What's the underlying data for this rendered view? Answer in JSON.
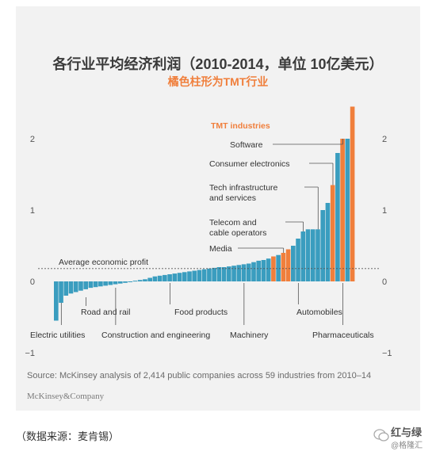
{
  "header": {
    "title": "各行业平均经济利润（2010-2014，单位 10亿美元）",
    "subtitle": "橘色柱形为TMT行业"
  },
  "source": "Source: McKinsey analysis of 2,414 public companies across 59 industries from 2010–14",
  "brand": "McKinsey&Company",
  "footer_note": "（数据来源：麦肯锡）",
  "watermark": {
    "name": "红与绿",
    "handle": "@格隆汇"
  },
  "colors": {
    "teal": "#3a9dbf",
    "orange": "#f07f3c",
    "panel": "#f2f2f2"
  },
  "chart_data": {
    "type": "bar",
    "title": "各行业平均经济利润（2010-2014，单位 10亿美元）",
    "subtitle": "橘色柱形为TMT行业",
    "ylim": [
      -1,
      2.5
    ],
    "y_ticks": [
      "2",
      "1",
      "0",
      "−1"
    ],
    "y_tick_values": [
      2,
      1,
      0,
      -1
    ],
    "grid": false,
    "reference_line": {
      "label": "Average economic profit",
      "value": 0.18
    },
    "values": [
      -0.55,
      -0.3,
      -0.2,
      -0.17,
      -0.15,
      -0.13,
      -0.11,
      -0.09,
      -0.08,
      -0.07,
      -0.06,
      -0.05,
      -0.04,
      -0.03,
      -0.02,
      0.0,
      0.01,
      0.02,
      0.03,
      0.05,
      0.07,
      0.08,
      0.09,
      0.1,
      0.11,
      0.12,
      0.13,
      0.14,
      0.15,
      0.16,
      0.17,
      0.18,
      0.19,
      0.2,
      0.2,
      0.21,
      0.22,
      0.23,
      0.24,
      0.25,
      0.27,
      0.29,
      0.3,
      0.32,
      0.35,
      0.37,
      0.4,
      0.45,
      0.5,
      0.6,
      0.7,
      0.73,
      0.73,
      0.73,
      1.0,
      1.1,
      1.35,
      1.8,
      2.0,
      2.0,
      2.45
    ],
    "tmt_flags": [
      0,
      0,
      0,
      0,
      0,
      0,
      0,
      0,
      0,
      0,
      0,
      0,
      0,
      0,
      0,
      0,
      0,
      0,
      0,
      0,
      0,
      0,
      0,
      0,
      0,
      0,
      0,
      0,
      0,
      0,
      0,
      0,
      0,
      0,
      0,
      0,
      0,
      0,
      0,
      0,
      0,
      0,
      0,
      0,
      1,
      0,
      1,
      1,
      0,
      0,
      0,
      0,
      0,
      0,
      0,
      0,
      1,
      0,
      1,
      0,
      1
    ],
    "legend_label": "TMT industries",
    "annotations": [
      {
        "label": "Software",
        "value": 2.0
      },
      {
        "label": "Consumer electronics",
        "value": 1.35
      },
      {
        "label": "Tech infrastructure\nand services",
        "value": 1.2
      },
      {
        "label": "Telecom and\ncable operators",
        "value": 0.6
      },
      {
        "label": "Media",
        "value": 0.35
      }
    ],
    "category_labels": [
      {
        "label": "Electric utilities"
      },
      {
        "label": "Road and rail"
      },
      {
        "label": "Construction and engineering"
      },
      {
        "label": "Food products"
      },
      {
        "label": "Machinery"
      },
      {
        "label": "Automobiles"
      },
      {
        "label": "Pharmaceuticals"
      }
    ]
  }
}
